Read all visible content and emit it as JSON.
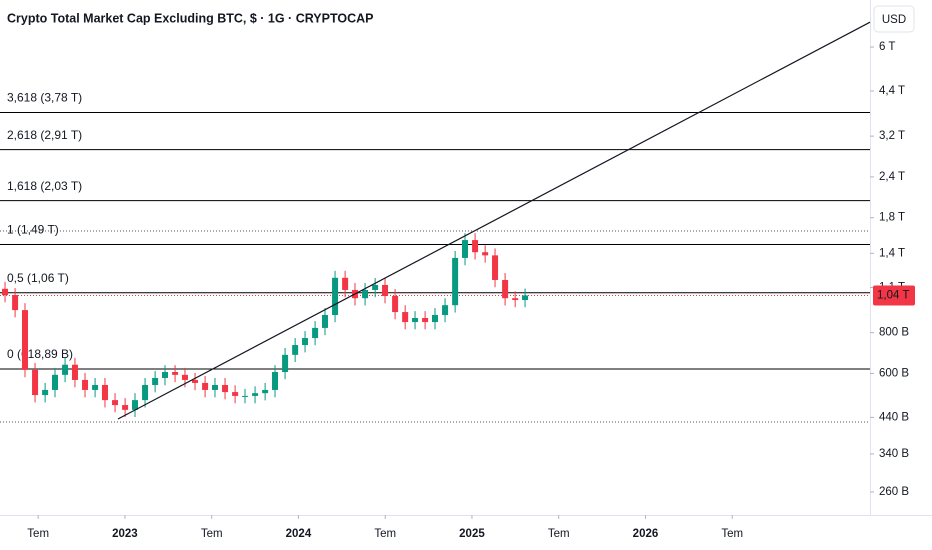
{
  "chart_data": {
    "type": "candlestick",
    "title": "Crypto Total Market Cap Excluding BTC, $ · 1G · CRYPTOCAP",
    "currency": "USD",
    "log_scale": true,
    "up_color": "#089981",
    "down_color": "#f23645",
    "x": [
      2022.309,
      2022.367,
      2022.424,
      2022.482,
      2022.54,
      2022.597,
      2022.655,
      2022.712,
      2022.77,
      2022.828,
      2022.885,
      2022.943,
      2023.001,
      2023.058,
      2023.116,
      2023.174,
      2023.231,
      2023.289,
      2023.346,
      2023.404,
      2023.462,
      2023.519,
      2023.577,
      2023.635,
      2023.692,
      2023.75,
      2023.808,
      2023.865,
      2023.923,
      2023.981,
      2024.038,
      2024.096,
      2024.153,
      2024.211,
      2024.269,
      2024.326,
      2024.384,
      2024.442,
      2024.499,
      2024.557,
      2024.615,
      2024.672,
      2024.73,
      2024.787,
      2024.845,
      2024.903,
      2024.96,
      2025.018,
      2025.076,
      2025.133,
      2025.191,
      2025.249,
      2025.306
    ],
    "open": [
      1090,
      1043,
      938,
      615,
      515,
      534,
      594,
      638,
      573,
      534,
      553,
      497,
      480,
      464,
      497,
      553,
      581,
      606,
      594,
      573,
      561,
      534,
      553,
      526,
      512,
      512,
      522,
      534,
      606,
      684,
      733,
      770,
      827,
      906,
      1178,
      1081,
      1020,
      1081,
      1120,
      1036,
      925,
      862,
      887,
      862,
      906,
      971,
      1355,
      1537,
      1411,
      1380,
      1160,
      1020,
      1007
    ],
    "high": [
      1145,
      1095,
      985,
      646,
      561,
      624,
      670,
      670,
      602,
      581,
      581,
      522,
      504,
      522,
      581,
      610,
      636,
      636,
      624,
      602,
      589,
      581,
      581,
      552,
      538,
      548,
      561,
      636,
      718,
      770,
      809,
      868,
      951,
      1237,
      1237,
      1135,
      1135,
      1176,
      1176,
      1088,
      971,
      931,
      931,
      951,
      1020,
      1423,
      1614,
      1614,
      1482,
      1449,
      1218,
      1071,
      1092
    ],
    "low": [
      991,
      891,
      584,
      489,
      489,
      507,
      564,
      544,
      507,
      507,
      472,
      456,
      441,
      441,
      472,
      525,
      552,
      564,
      544,
      533,
      507,
      507,
      500,
      486,
      486,
      486,
      496,
      507,
      576,
      650,
      696,
      732,
      786,
      861,
      1027,
      969,
      969,
      1027,
      984,
      879,
      819,
      819,
      819,
      819,
      861,
      922,
      1287,
      1340,
      1311,
      1102,
      969,
      957,
      957
    ],
    "close": [
      1043,
      938,
      615,
      515,
      534,
      594,
      638,
      573,
      534,
      553,
      497,
      480,
      464,
      497,
      553,
      581,
      606,
      594,
      573,
      561,
      534,
      553,
      526,
      512,
      512,
      522,
      534,
      606,
      684,
      733,
      770,
      827,
      906,
      1178,
      1081,
      1020,
      1081,
      1120,
      1036,
      925,
      862,
      887,
      862,
      906,
      971,
      1355,
      1537,
      1411,
      1380,
      1160,
      1020,
      1007,
      1040
    ],
    "xlim": [
      2022.28,
      2027.294
    ],
    "xticks": [
      {
        "value": 2022.5,
        "label": "Tem"
      },
      2023,
      {
        "value": 2023.5,
        "label": "Tem"
      },
      2024,
      {
        "value": 2024.5,
        "label": "Tem"
      },
      2025,
      {
        "value": 2025.5,
        "label": "Tem"
      },
      2026,
      {
        "value": 2026.5,
        "label": "Tem"
      }
    ],
    "ylim": [
      221,
      8360
    ],
    "yticks": [
      {
        "value": 6000,
        "label": "6 T"
      },
      {
        "value": 4400,
        "label": "4,4 T"
      },
      {
        "value": 3200,
        "label": "3,2 T"
      },
      {
        "value": 2400,
        "label": "2,4 T"
      },
      {
        "value": 1800,
        "label": "1,8 T"
      },
      {
        "value": 1400,
        "label": "1,4 T"
      },
      {
        "value": 1100,
        "label": "1,1 T"
      },
      {
        "value": 800,
        "label": "800 B"
      },
      {
        "value": 600,
        "label": "600 B"
      },
      {
        "value": 440,
        "label": "440 B"
      },
      {
        "value": 340,
        "label": "340 B"
      },
      {
        "value": 260,
        "label": "260 B"
      }
    ],
    "fib_color": "#000000",
    "fib_levels": [
      {
        "label": "3,618 (3,78 T)",
        "value": 3780
      },
      {
        "label": "2,618 (2,91 T)",
        "value": 2910
      },
      {
        "label": "1,618 (2,03 T)",
        "value": 2030
      },
      {
        "label": "1 (1,49 T)",
        "value": 1490
      },
      {
        "label": "0,5 (1,06 T)",
        "value": 1060
      },
      {
        "label": "0 (618,89 B)",
        "value": 618.89
      }
    ],
    "dotted_lines": [
      1638,
      426
    ],
    "trendline": {
      "x": [
        2022.96,
        2027.294
      ],
      "values": [
        435,
        7150
      ]
    },
    "last_price": {
      "value": 1040,
      "label": "1,04 T",
      "color": "#f23645"
    }
  }
}
